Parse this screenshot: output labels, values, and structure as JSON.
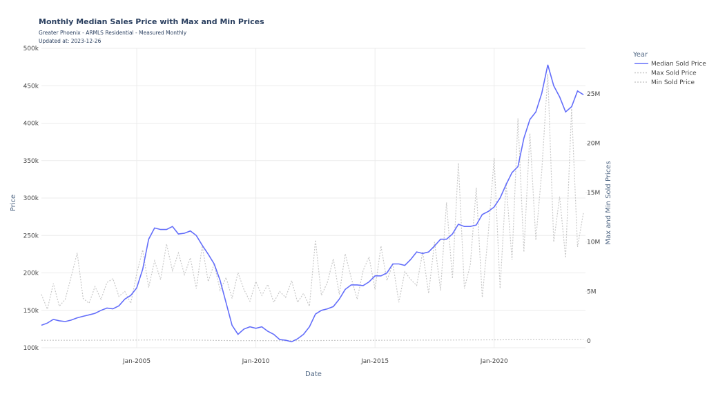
{
  "chart_data": {
    "type": "line",
    "title": "Monthly Median Sales Price with Max and Min Prices",
    "subtitle": "Greater Phoenix - ARMLS Residential - Measured Monthly",
    "updated": "Updated at: 2023-12-26",
    "x_label": "Date",
    "y_label": "Price",
    "y2_label": "Max and Min Sold Prices",
    "legend_title": "Year",
    "legend_position": "right",
    "grid": true,
    "x": [
      "2001-01",
      "2001-04",
      "2001-07",
      "2001-10",
      "2002-01",
      "2002-04",
      "2002-07",
      "2002-10",
      "2003-01",
      "2003-04",
      "2003-07",
      "2003-10",
      "2004-01",
      "2004-04",
      "2004-07",
      "2004-10",
      "2005-01",
      "2005-04",
      "2005-07",
      "2005-10",
      "2006-01",
      "2006-04",
      "2006-07",
      "2006-10",
      "2007-01",
      "2007-04",
      "2007-07",
      "2007-10",
      "2008-01",
      "2008-04",
      "2008-07",
      "2008-10",
      "2009-01",
      "2009-04",
      "2009-07",
      "2009-10",
      "2010-01",
      "2010-04",
      "2010-07",
      "2010-10",
      "2011-01",
      "2011-04",
      "2011-07",
      "2011-10",
      "2012-01",
      "2012-04",
      "2012-07",
      "2012-10",
      "2013-01",
      "2013-04",
      "2013-07",
      "2013-10",
      "2014-01",
      "2014-04",
      "2014-07",
      "2014-10",
      "2015-01",
      "2015-04",
      "2015-07",
      "2015-10",
      "2016-01",
      "2016-04",
      "2016-07",
      "2016-10",
      "2017-01",
      "2017-04",
      "2017-07",
      "2017-10",
      "2018-01",
      "2018-04",
      "2018-07",
      "2018-10",
      "2019-01",
      "2019-04",
      "2019-07",
      "2019-10",
      "2020-01",
      "2020-04",
      "2020-07",
      "2020-10",
      "2021-01",
      "2021-04",
      "2021-07",
      "2021-10",
      "2022-01",
      "2022-04",
      "2022-07",
      "2022-10",
      "2023-01",
      "2023-04",
      "2023-07",
      "2023-10"
    ],
    "xlim": [
      "2001-01",
      "2023-11"
    ],
    "xticks": [
      {
        "value": "2005-01",
        "label": "Jan-2005"
      },
      {
        "value": "2010-01",
        "label": "Jan-2010"
      },
      {
        "value": "2015-01",
        "label": "Jan-2015"
      },
      {
        "value": "2020-01",
        "label": "Jan-2020"
      }
    ],
    "ylim": [
      100000,
      500000
    ],
    "yticks": [
      {
        "value": 100000,
        "label": "100k"
      },
      {
        "value": 150000,
        "label": "150k"
      },
      {
        "value": 200000,
        "label": "200k"
      },
      {
        "value": 250000,
        "label": "250k"
      },
      {
        "value": 300000,
        "label": "300k"
      },
      {
        "value": 350000,
        "label": "350k"
      },
      {
        "value": 400000,
        "label": "400k"
      },
      {
        "value": 450000,
        "label": "450k"
      },
      {
        "value": 500000,
        "label": "500k"
      }
    ],
    "y2lim": [
      -700000,
      29600000
    ],
    "y2ticks": [
      0,
      {
        "value": 5000000,
        "label": "5M"
      },
      {
        "value": 10000000,
        "label": "10M"
      },
      {
        "value": 15000000,
        "label": "15M"
      },
      {
        "value": 20000000,
        "label": "20M"
      },
      {
        "value": 25000000,
        "label": "25M"
      }
    ],
    "series": [
      {
        "name": "Median Sold Price",
        "color": "#636efa",
        "dash": "solid",
        "values": [
          130000,
          133000,
          138000,
          136000,
          135000,
          137000,
          140000,
          142000,
          144000,
          146000,
          150000,
          153000,
          152000,
          156000,
          165000,
          170000,
          180000,
          205000,
          245000,
          260000,
          258000,
          258000,
          262000,
          252000,
          253000,
          256000,
          250000,
          237000,
          225000,
          212000,
          190000,
          160000,
          130000,
          118000,
          125000,
          128000,
          126000,
          128000,
          122000,
          118000,
          111000,
          110000,
          108000,
          112000,
          118000,
          128000,
          145000,
          150000,
          152000,
          155000,
          165000,
          178000,
          184000,
          184000,
          183000,
          188000,
          196000,
          196000,
          200000,
          212000,
          212000,
          210000,
          218000,
          228000,
          226000,
          228000,
          236000,
          245000,
          245000,
          252000,
          265000,
          262000,
          262000,
          264000,
          278000,
          282000,
          288000,
          300000,
          318000,
          334000,
          342000,
          380000,
          405000,
          415000,
          440000,
          478000,
          450000,
          435000,
          415000,
          422000,
          443000,
          438000
        ]
      },
      {
        "name": "Max Sold Price",
        "color": "#c8c8c8",
        "dash": "dotted",
        "axis": "y2",
        "values": [
          4700000,
          3200000,
          5800000,
          3500000,
          4200000,
          6500000,
          8900000,
          4300000,
          3800000,
          5500000,
          4200000,
          5900000,
          6300000,
          4500000,
          5000000,
          3800000,
          6800000,
          9200000,
          5400000,
          8100000,
          6200000,
          9800000,
          7100000,
          8900000,
          6700000,
          8400000,
          5300000,
          9600000,
          6000000,
          7800000,
          5100000,
          6400000,
          4300000,
          6900000,
          5200000,
          4000000,
          6000000,
          4600000,
          5700000,
          3900000,
          5000000,
          4400000,
          6100000,
          3900000,
          4800000,
          3500000,
          10200000,
          4600000,
          5900000,
          8300000,
          4700000,
          8800000,
          6400000,
          4200000,
          7100000,
          8500000,
          5200000,
          9600000,
          6100000,
          7800000,
          3900000,
          7000000,
          6200000,
          5600000,
          9000000,
          4800000,
          10000000,
          5100000,
          14000000,
          6300000,
          18000000,
          5300000,
          7700000,
          15500000,
          4400000,
          10800000,
          18500000,
          5300000,
          16000000,
          8200000,
          22500000,
          9000000,
          21000000,
          10200000,
          17200000,
          27000000,
          10000000,
          14600000,
          8400000,
          23500000,
          9500000,
          13000000
        ]
      },
      {
        "name": "Min Sold Price",
        "color": "#c8c8c8",
        "dash": "dotted",
        "axis": "y2",
        "values": [
          60000,
          55000,
          60000,
          58000,
          62000,
          60000,
          65000,
          60000,
          62000,
          66000,
          64000,
          68000,
          70000,
          72000,
          75000,
          78000,
          80000,
          85000,
          90000,
          88000,
          90000,
          92000,
          88000,
          85000,
          84000,
          80000,
          78000,
          70000,
          60000,
          50000,
          40000,
          30000,
          25000,
          20000,
          22000,
          25000,
          22000,
          24000,
          20000,
          18000,
          15000,
          15000,
          14000,
          16000,
          20000,
          25000,
          30000,
          35000,
          40000,
          42000,
          45000,
          48000,
          50000,
          50000,
          52000,
          55000,
          58000,
          60000,
          62000,
          65000,
          66000,
          68000,
          70000,
          72000,
          74000,
          76000,
          78000,
          80000,
          82000,
          85000,
          88000,
          90000,
          92000,
          95000,
          98000,
          100000,
          102000,
          105000,
          110000,
          115000,
          120000,
          125000,
          130000,
          135000,
          140000,
          145000,
          140000,
          135000,
          130000,
          130000,
          132000,
          135000
        ]
      }
    ]
  }
}
